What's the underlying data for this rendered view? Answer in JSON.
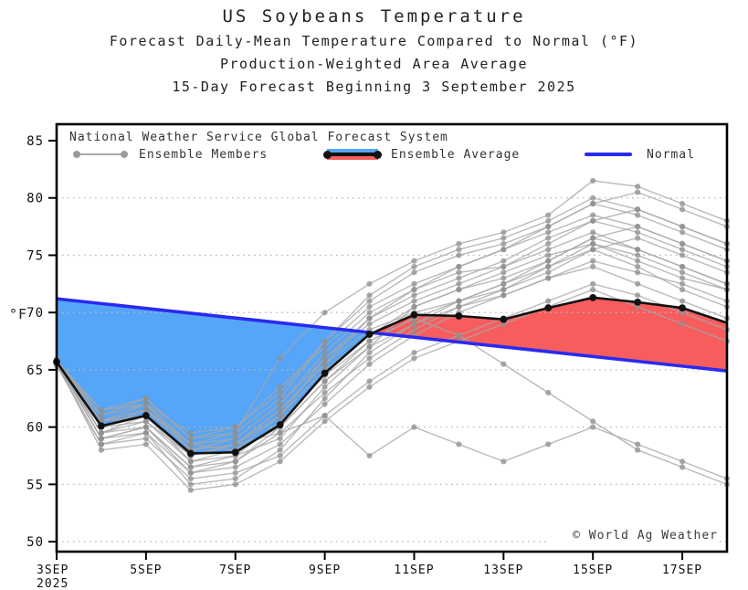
{
  "title": "US Soybeans Temperature",
  "subtitle1": "Forecast Daily-Mean Temperature Compared to Normal (°F)",
  "subtitle2": "Production-Weighted Area Average",
  "subtitle3": "15-Day Forecast Beginning 3 September 2025",
  "watermark": "© World Ag Weather",
  "legend": {
    "header": "National Weather Service Global Forecast System",
    "members_label": "Ensemble Members",
    "average_label": "Ensemble Average",
    "normal_label": "Normal"
  },
  "colors": {
    "above_normal_fill": "#f75d5d",
    "below_normal_fill": "#55a5f8",
    "normal_line": "#2a2af0",
    "average_line": "#111111",
    "member_line": "#a6a6a6",
    "member_dot": "#8f8f8f",
    "gridline": "#b9b9b9",
    "frame": "#000000"
  },
  "chart_data": {
    "type": "line",
    "title": "US Soybeans Temperature",
    "ylabel": "°F",
    "ylim": [
      49,
      86.5
    ],
    "grid": "dotted-horizontal",
    "legend_position": "top-inside",
    "y_ticks": [
      50,
      55,
      60,
      65,
      70,
      75,
      80,
      85
    ],
    "x_tick_labels": [
      "3SEP",
      "5SEP",
      "7SEP",
      "9SEP",
      "11SEP",
      "13SEP",
      "15SEP",
      "17SEP"
    ],
    "x_tick_days": [
      0,
      2,
      4,
      6,
      8,
      10,
      12,
      14
    ],
    "x_year_label": "2025",
    "days": [
      "3SEP",
      "4SEP",
      "5SEP",
      "6SEP",
      "7SEP",
      "8SEP",
      "9SEP",
      "10SEP",
      "11SEP",
      "12SEP",
      "13SEP",
      "14SEP",
      "15SEP",
      "16SEP",
      "17SEP",
      "18SEP"
    ],
    "series": [
      {
        "name": "Ensemble Average",
        "values": [
          65.7,
          60.1,
          61.0,
          57.7,
          57.8,
          60.2,
          64.7,
          68.1,
          69.8,
          69.7,
          69.4,
          70.4,
          71.3,
          70.9,
          70.4,
          69.1
        ]
      },
      {
        "name": "Normal",
        "values": [
          71.2,
          70.78,
          70.36,
          69.94,
          69.52,
          69.1,
          68.68,
          68.26,
          67.84,
          67.42,
          67.0,
          66.58,
          66.16,
          65.74,
          65.32,
          64.9
        ]
      }
    ],
    "members": [
      [
        65.9,
        59.5,
        60.5,
        57.0,
        57.5,
        59.0,
        63.5,
        67.0,
        70.5,
        72.0,
        73.5,
        75.0,
        76.0,
        74.5,
        73.0,
        72.0
      ],
      [
        65.5,
        60.5,
        61.5,
        58.5,
        58.0,
        61.0,
        66.0,
        69.5,
        71.5,
        73.0,
        74.5,
        76.5,
        78.0,
        77.0,
        75.5,
        74.0
      ],
      [
        65.8,
        61.5,
        62.5,
        59.0,
        59.5,
        62.5,
        67.5,
        71.0,
        73.5,
        75.0,
        76.0,
        77.5,
        79.5,
        80.5,
        79.0,
        77.5
      ],
      [
        65.6,
        59.0,
        59.5,
        56.0,
        56.5,
        58.5,
        62.0,
        65.5,
        68.0,
        70.0,
        71.5,
        73.0,
        74.5,
        73.5,
        72.5,
        71.0
      ],
      [
        65.9,
        60.0,
        61.0,
        57.5,
        58.5,
        61.5,
        65.5,
        68.5,
        70.0,
        71.0,
        72.0,
        73.5,
        75.5,
        76.5,
        75.0,
        73.5
      ],
      [
        65.4,
        58.5,
        59.0,
        55.5,
        56.0,
        57.5,
        61.0,
        64.0,
        66.5,
        68.0,
        69.5,
        71.0,
        72.5,
        71.5,
        70.0,
        68.5
      ],
      [
        65.7,
        61.0,
        62.0,
        58.0,
        59.0,
        62.0,
        66.5,
        70.0,
        72.0,
        73.5,
        74.0,
        75.5,
        77.0,
        75.5,
        74.0,
        72.5
      ],
      [
        65.8,
        60.5,
        61.5,
        58.5,
        59.5,
        66.0,
        70.0,
        72.5,
        74.5,
        76.0,
        77.0,
        78.5,
        81.5,
        81.0,
        79.5,
        78.0
      ],
      [
        65.5,
        59.5,
        60.0,
        56.5,
        57.0,
        59.5,
        63.0,
        66.0,
        68.5,
        70.5,
        72.0,
        74.0,
        76.0,
        75.0,
        73.5,
        72.0
      ],
      [
        65.6,
        58.0,
        58.5,
        54.5,
        55.0,
        57.0,
        60.5,
        63.5,
        66.0,
        67.5,
        69.0,
        70.5,
        72.0,
        70.5,
        69.0,
        67.5
      ],
      [
        65.9,
        60.0,
        61.5,
        58.0,
        58.5,
        61.0,
        65.0,
        68.0,
        70.5,
        72.0,
        73.0,
        74.5,
        76.5,
        77.5,
        76.0,
        74.5
      ],
      [
        65.7,
        59.0,
        60.0,
        56.5,
        57.5,
        60.5,
        64.5,
        67.5,
        69.5,
        71.0,
        72.5,
        74.0,
        75.5,
        74.0,
        72.0,
        70.5
      ],
      [
        65.5,
        61.5,
        62.0,
        59.5,
        60.0,
        63.5,
        67.0,
        70.5,
        72.5,
        74.0,
        75.5,
        77.0,
        78.5,
        77.5,
        76.0,
        74.5
      ],
      [
        65.8,
        59.5,
        61.0,
        57.0,
        58.0,
        60.0,
        64.0,
        67.0,
        69.0,
        70.5,
        71.5,
        73.0,
        74.0,
        72.5,
        71.0,
        69.5
      ],
      [
        65.6,
        60.5,
        62.0,
        58.5,
        59.0,
        62.0,
        66.0,
        69.0,
        71.0,
        72.5,
        74.0,
        76.0,
        78.0,
        79.0,
        77.5,
        76.0
      ],
      [
        65.4,
        58.5,
        59.5,
        55.0,
        55.5,
        58.0,
        62.5,
        66.5,
        69.0,
        71.0,
        72.5,
        74.5,
        76.5,
        75.5,
        74.0,
        72.5
      ],
      [
        65.7,
        60.0,
        60.5,
        57.5,
        58.5,
        61.5,
        65.5,
        69.5,
        72.0,
        74.0,
        75.5,
        77.5,
        79.5,
        78.5,
        77.0,
        75.5
      ],
      [
        65.9,
        61.0,
        62.5,
        59.0,
        60.0,
        63.0,
        67.5,
        71.5,
        74.0,
        75.5,
        76.5,
        78.0,
        80.0,
        79.0,
        77.5,
        76.0
      ],
      [
        65.6,
        59.0,
        60.0,
        56.0,
        57.0,
        60.0,
        64.0,
        67.5,
        69.5,
        68.0,
        65.5,
        63.0,
        60.5,
        58.0,
        56.5,
        55.0
      ],
      [
        65.8,
        60.5,
        61.0,
        57.5,
        58.5,
        59.5,
        61.0,
        57.5,
        60.0,
        58.5,
        57.0,
        58.5,
        60.0,
        58.5,
        57.0,
        55.5
      ]
    ]
  }
}
